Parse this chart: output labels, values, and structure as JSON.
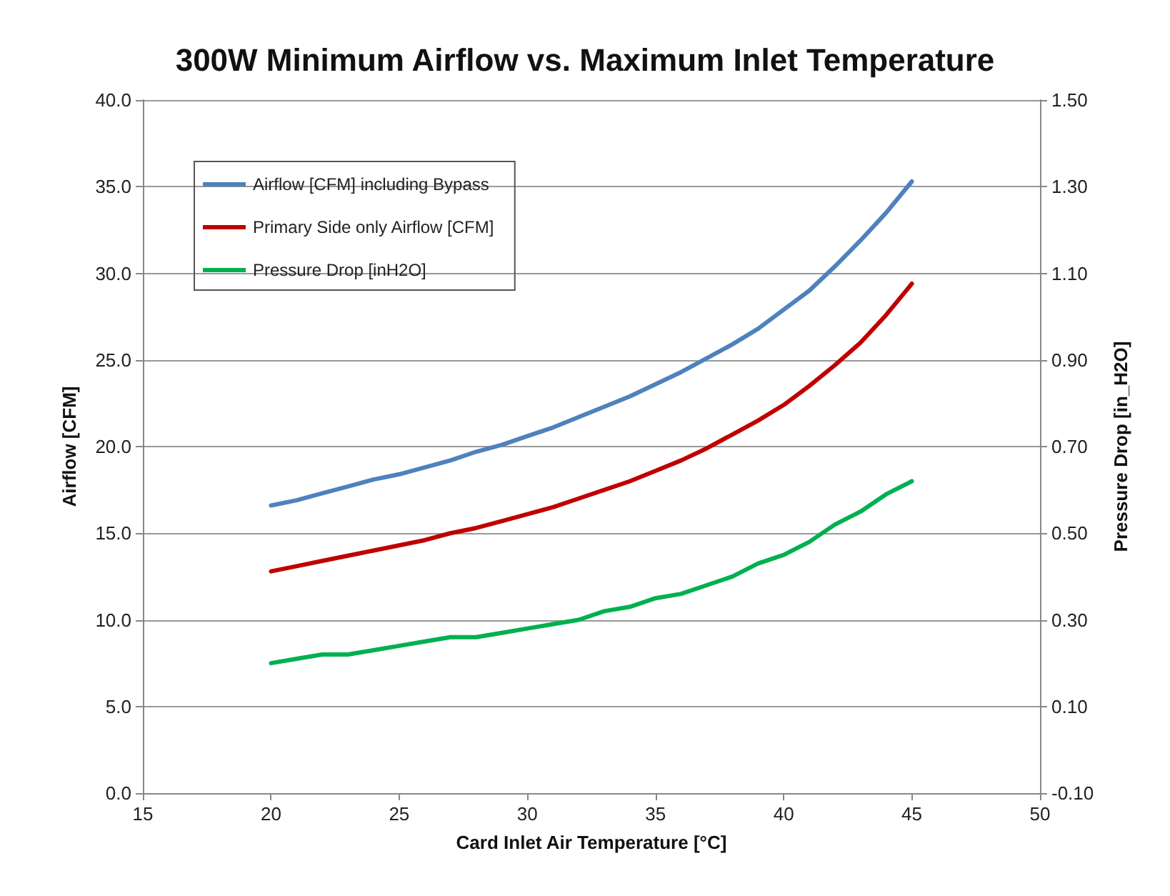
{
  "chart_data": {
    "type": "line",
    "title": "300W Minimum Airflow vs. Maximum Inlet Temperature",
    "xlabel": "Card Inlet Air Temperature [°C]",
    "ylabel": "Airflow [CFM]",
    "y2label": "Pressure Drop [in_H2O]",
    "x": [
      20,
      21,
      22,
      23,
      24,
      25,
      26,
      27,
      28,
      29,
      30,
      31,
      32,
      33,
      34,
      35,
      36,
      37,
      38,
      39,
      40,
      41,
      42,
      43,
      44,
      45
    ],
    "series": [
      {
        "name": "Airflow [CFM] including Bypass",
        "color": "#4f81bd",
        "values": [
          16.6,
          16.9,
          17.3,
          17.7,
          18.1,
          18.4,
          18.8,
          19.2,
          19.7,
          20.1,
          20.6,
          21.1,
          21.7,
          22.3,
          22.9,
          23.6,
          24.3,
          25.1,
          25.9,
          26.8,
          27.9,
          29.0,
          30.4,
          31.9,
          33.5,
          35.3
        ]
      },
      {
        "name": "Primary Side only Airflow [CFM]",
        "color": "#c00000",
        "values": [
          12.8,
          13.1,
          13.4,
          13.7,
          14.0,
          14.3,
          14.6,
          15.0,
          15.3,
          15.7,
          16.1,
          16.5,
          17.0,
          17.5,
          18.0,
          18.6,
          19.2,
          19.9,
          20.7,
          21.5,
          22.4,
          23.5,
          24.7,
          26.0,
          27.6,
          29.4
        ]
      },
      {
        "name": "Pressure Drop [inH2O]",
        "color": "#00b050",
        "axis": "y2",
        "values": [
          0.2,
          0.21,
          0.22,
          0.22,
          0.23,
          0.24,
          0.25,
          0.26,
          0.26,
          0.27,
          0.28,
          0.29,
          0.3,
          0.32,
          0.33,
          0.35,
          0.36,
          0.38,
          0.4,
          0.43,
          0.45,
          0.48,
          0.52,
          0.55,
          0.59,
          0.62
        ]
      }
    ],
    "xlim": [
      15,
      50
    ],
    "xticks": [
      15,
      20,
      25,
      30,
      35,
      40,
      45,
      50
    ],
    "ylim": [
      0,
      40
    ],
    "yticks": [
      {
        "value": 0,
        "label": "0.0"
      },
      {
        "value": 5,
        "label": "5.0"
      },
      {
        "value": 10,
        "label": "10.0"
      },
      {
        "value": 15,
        "label": "15.0"
      },
      {
        "value": 20,
        "label": "20.0"
      },
      {
        "value": 25,
        "label": "25.0"
      },
      {
        "value": 30,
        "label": "30.0"
      },
      {
        "value": 35,
        "label": "35.0"
      },
      {
        "value": 40,
        "label": "40.0"
      }
    ],
    "y2lim": [
      -0.1,
      1.5
    ],
    "y2ticks": [
      {
        "value": -0.1,
        "label": "-0.10"
      },
      {
        "value": 0.1,
        "label": "0.10"
      },
      {
        "value": 0.3,
        "label": "0.30"
      },
      {
        "value": 0.5,
        "label": "0.50"
      },
      {
        "value": 0.7,
        "label": "0.70"
      },
      {
        "value": 0.9,
        "label": "0.90"
      },
      {
        "value": 1.1,
        "label": "1.10"
      },
      {
        "value": 1.3,
        "label": "1.30"
      },
      {
        "value": 1.5,
        "label": "1.50"
      }
    ],
    "grid": "y",
    "legend": "top left",
    "marker": "none",
    "line_style": "solid"
  }
}
